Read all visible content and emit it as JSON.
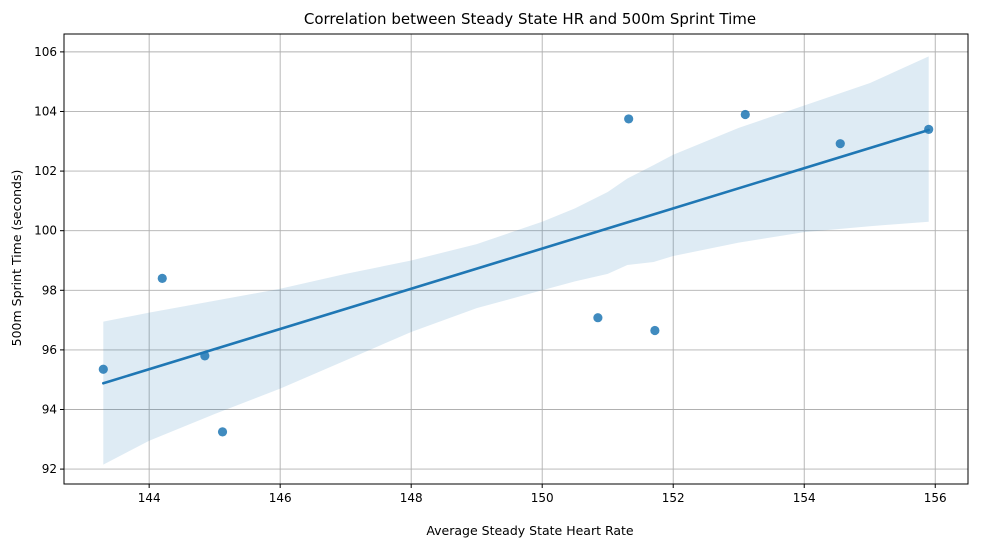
{
  "chart_data": {
    "type": "scatter",
    "title": "Correlation between Steady State HR and 500m Sprint Time",
    "xlabel": "Average Steady State Heart Rate",
    "ylabel": "500m Sprint Time (seconds)",
    "xlim": [
      142.7,
      156.5
    ],
    "ylim": [
      91.5,
      106.6
    ],
    "xticks": [
      144,
      146,
      148,
      150,
      152,
      154,
      156
    ],
    "yticks": [
      92,
      94,
      96,
      98,
      100,
      102,
      104,
      106
    ],
    "grid": true,
    "points": [
      {
        "x": 143.3,
        "y": 95.35
      },
      {
        "x": 144.2,
        "y": 98.4
      },
      {
        "x": 144.85,
        "y": 95.8
      },
      {
        "x": 145.12,
        "y": 93.25
      },
      {
        "x": 150.85,
        "y": 97.08
      },
      {
        "x": 151.32,
        "y": 103.75
      },
      {
        "x": 151.72,
        "y": 96.65
      },
      {
        "x": 153.1,
        "y": 103.9
      },
      {
        "x": 154.55,
        "y": 102.92
      },
      {
        "x": 155.9,
        "y": 103.4
      }
    ],
    "regression_line": {
      "x": [
        143.3,
        155.9
      ],
      "y": [
        94.88,
        103.38
      ]
    },
    "confidence_band": {
      "x": [
        143.3,
        144.0,
        145.0,
        146.0,
        147.0,
        148.0,
        149.0,
        150.0,
        150.5,
        151.0,
        151.3,
        151.7,
        152.0,
        153.0,
        154.0,
        155.0,
        155.9
      ],
      "upper": [
        96.95,
        97.25,
        97.65,
        98.05,
        98.55,
        99.0,
        99.55,
        100.3,
        100.75,
        101.3,
        101.75,
        102.2,
        102.55,
        103.45,
        104.2,
        104.95,
        105.85
      ],
      "lower": [
        92.15,
        92.95,
        93.85,
        94.7,
        95.65,
        96.6,
        97.4,
        98.0,
        98.3,
        98.55,
        98.85,
        98.95,
        99.15,
        99.6,
        99.95,
        100.15,
        100.3
      ]
    },
    "colors": {
      "points": "#1f77b4",
      "line": "#1f77b4",
      "band": "#1f77b4",
      "grid": "#b0b0b0",
      "axes": "#000000"
    }
  }
}
